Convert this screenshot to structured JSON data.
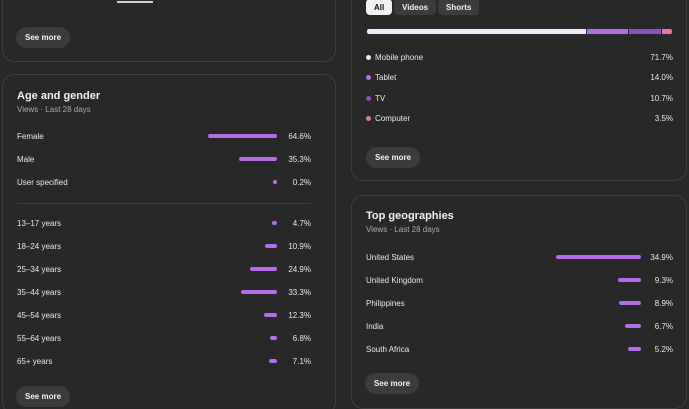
{
  "top_left_card": {
    "see_more": "See more"
  },
  "age_gender": {
    "title": "Age and gender",
    "subtitle": "Views · Last 28 days",
    "gender": [
      {
        "label": "Female",
        "value": "64.6%",
        "pct": 64.6
      },
      {
        "label": "Male",
        "value": "35.3%",
        "pct": 35.3
      },
      {
        "label": "User specified",
        "value": "0.2%",
        "pct": 0.2
      }
    ],
    "age": [
      {
        "label": "13–17 years",
        "value": "4.7%",
        "pct": 4.7
      },
      {
        "label": "18–24 years",
        "value": "10.9%",
        "pct": 10.9
      },
      {
        "label": "25–34 years",
        "value": "24.9%",
        "pct": 24.9
      },
      {
        "label": "35–44 years",
        "value": "33.3%",
        "pct": 33.3
      },
      {
        "label": "45–54 years",
        "value": "12.3%",
        "pct": 12.3
      },
      {
        "label": "55–64 years",
        "value": "6.8%",
        "pct": 6.8
      },
      {
        "label": "65+ years",
        "value": "7.1%",
        "pct": 7.1
      }
    ],
    "see_more": "See more"
  },
  "device_type": {
    "tabs": [
      {
        "label": "All",
        "active": true
      },
      {
        "label": "Videos",
        "active": false
      },
      {
        "label": "Shorts",
        "active": false
      }
    ],
    "items": [
      {
        "label": "Mobile phone",
        "value": "71.7%",
        "pct": 71.7,
        "color": "#f1e6fb"
      },
      {
        "label": "Tablet",
        "value": "14.0%",
        "pct": 14.0,
        "color": "#b56ce8"
      },
      {
        "label": "TV",
        "value": "10.7%",
        "pct": 10.7,
        "color": "#8d4fc9"
      },
      {
        "label": "Computer",
        "value": "3.5%",
        "pct": 3.5,
        "color": "#e573a8"
      }
    ],
    "see_more": "See more"
  },
  "geographies": {
    "title": "Top geographies",
    "subtitle": "Views · Last 28 days",
    "items": [
      {
        "label": "United States",
        "value": "34.9%",
        "pct": 34.9
      },
      {
        "label": "United Kingdom",
        "value": "9.3%",
        "pct": 9.3
      },
      {
        "label": "Philippines",
        "value": "8.9%",
        "pct": 8.9
      },
      {
        "label": "India",
        "value": "6.7%",
        "pct": 6.7
      },
      {
        "label": "South Africa",
        "value": "5.2%",
        "pct": 5.2
      }
    ],
    "see_more": "See more"
  },
  "colors": {
    "bar": "#b56ce8",
    "card_border": "#3e3e3e",
    "bg": "#282828"
  }
}
